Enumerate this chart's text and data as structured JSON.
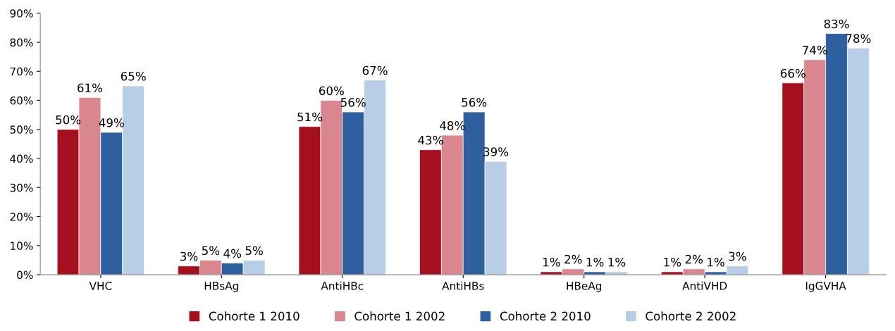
{
  "chart_data": {
    "type": "bar",
    "categories": [
      "VHC",
      "HBsAg",
      "AntiHBc",
      "AntiHBs",
      "HBeAg",
      "AntiVHD",
      "IgGVHA"
    ],
    "series": [
      {
        "name": "Cohorte 1 2010",
        "color": "#a50f1e",
        "values": [
          50,
          3,
          51,
          43,
          1,
          1,
          66
        ],
        "value_labels": [
          "50%",
          "3%",
          "51%",
          "43%",
          "1%",
          "1%",
          "66%"
        ]
      },
      {
        "name": "Cohorte 1 2002",
        "color": "#d9868f",
        "values": [
          61,
          5,
          60,
          48,
          2,
          2,
          74
        ],
        "value_labels": [
          "61%",
          "5%",
          "60%",
          "48%",
          "2%",
          "2%",
          "74%"
        ]
      },
      {
        "name": "Cohorte 2 2010",
        "color": "#2e5f9e",
        "values": [
          49,
          4,
          56,
          56,
          1,
          1,
          83
        ],
        "value_labels": [
          "49%",
          "4%",
          "56%",
          "56%",
          "1%",
          "1%",
          "83%"
        ]
      },
      {
        "name": "Cohorte 2 2002",
        "color": "#b8cde6",
        "values": [
          65,
          5,
          67,
          39,
          1,
          3,
          78
        ],
        "value_labels": [
          "65%",
          "5%",
          "67%",
          "39%",
          "1%",
          "3%",
          "78%"
        ]
      }
    ],
    "ylim": [
      0,
      90
    ],
    "yticks": [
      {
        "value": 0,
        "label": "0%"
      },
      {
        "value": 10,
        "label": "10%"
      },
      {
        "value": 20,
        "label": "20%"
      },
      {
        "value": 30,
        "label": "30%"
      },
      {
        "value": 40,
        "label": "40%"
      },
      {
        "value": 50,
        "label": "50%"
      },
      {
        "value": 60,
        "label": "60%"
      },
      {
        "value": 70,
        "label": "70%"
      },
      {
        "value": 80,
        "label": "80%"
      },
      {
        "value": 90,
        "label": "90%"
      }
    ],
    "grid": false,
    "legend": "bottom"
  }
}
